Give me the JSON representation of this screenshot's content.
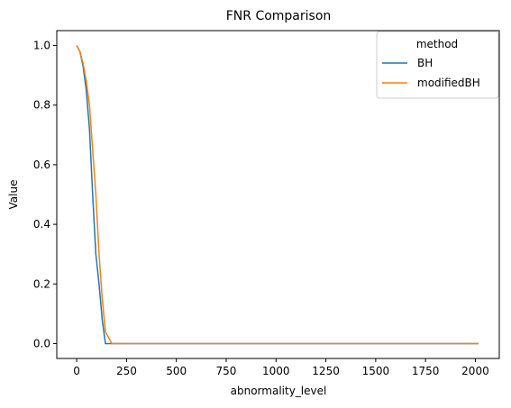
{
  "chart_data": {
    "type": "line",
    "title": "FNR Comparison",
    "xlabel": "abnormality_level",
    "ylabel": "Value",
    "xlim": [
      -100,
      2120
    ],
    "ylim": [
      -0.05,
      1.05
    ],
    "xticks": [
      0,
      250,
      500,
      750,
      1000,
      1250,
      1500,
      1750,
      2000
    ],
    "yticks": [
      0.0,
      0.2,
      0.4,
      0.6,
      0.8,
      1.0
    ],
    "xtick_labels": [
      "0",
      "250",
      "500",
      "750",
      "1000",
      "1250",
      "1500",
      "1750",
      "2000"
    ],
    "ytick_labels": [
      "0.0",
      "0.2",
      "0.4",
      "0.6",
      "0.8",
      "1.0"
    ],
    "grid": false,
    "legend": {
      "title": "method",
      "position": "top-right"
    },
    "series": [
      {
        "name": "BH",
        "color": "#1f77b4",
        "x": [
          0,
          16,
          32,
          48,
          64,
          80,
          96,
          112,
          128,
          144,
          160,
          176,
          2016
        ],
        "y": [
          1.0,
          0.98,
          0.93,
          0.85,
          0.72,
          0.5,
          0.3,
          0.2,
          0.08,
          0.0,
          0.0,
          0.0,
          0.0
        ]
      },
      {
        "name": "modifiedBH",
        "color": "#ff7f0e",
        "x": [
          0,
          16,
          32,
          48,
          64,
          80,
          96,
          112,
          128,
          144,
          160,
          176,
          2016
        ],
        "y": [
          1.0,
          0.98,
          0.94,
          0.88,
          0.8,
          0.65,
          0.5,
          0.3,
          0.15,
          0.04,
          0.02,
          0.0,
          0.0
        ]
      }
    ]
  }
}
